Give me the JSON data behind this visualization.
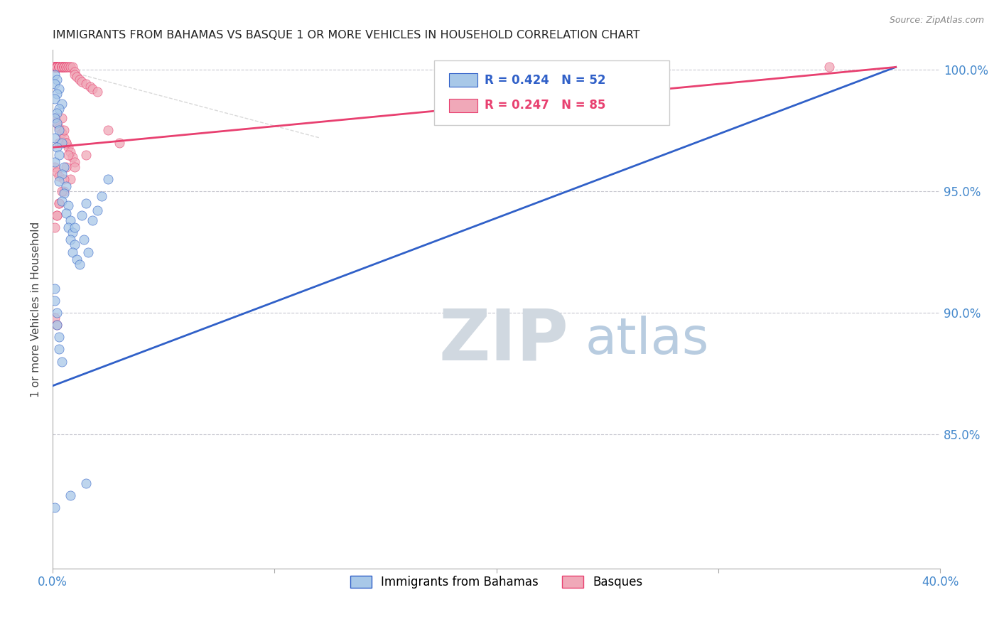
{
  "title": "IMMIGRANTS FROM BAHAMAS VS BASQUE 1 OR MORE VEHICLES IN HOUSEHOLD CORRELATION CHART",
  "source": "Source: ZipAtlas.com",
  "ylabel": "1 or more Vehicles in Household",
  "legend_blue_label": "Immigrants from Bahamas",
  "legend_pink_label": "Basques",
  "legend_blue_r": "R = 0.424",
  "legend_blue_n": "N = 52",
  "legend_pink_r": "R = 0.247",
  "legend_pink_n": "N = 85",
  "blue_color": "#a8c8e8",
  "pink_color": "#f0a8b8",
  "trend_blue_color": "#3060c8",
  "trend_pink_color": "#e84070",
  "title_color": "#222222",
  "axis_label_color": "#4488cc",
  "watermark_zip_color": "#d0d8e0",
  "watermark_atlas_color": "#b8cce0",
  "background_color": "#ffffff",
  "grid_color": "#c8c8d0",
  "xmin": 0.0,
  "xmax": 0.4,
  "ymin": 0.795,
  "ymax": 1.008,
  "yticks": [
    0.85,
    0.9,
    0.95,
    1.0
  ],
  "ytick_labels": [
    "85.0%",
    "90.0%",
    "95.0%",
    "100.0%"
  ],
  "xticks": [
    0.0,
    0.1,
    0.2,
    0.3,
    0.4
  ],
  "xtick_labels": [
    "0.0%",
    "",
    "",
    "",
    "40.0%"
  ],
  "blue_trend_x0": 0.0,
  "blue_trend_x1": 0.38,
  "blue_trend_y0": 0.87,
  "blue_trend_y1": 1.001,
  "pink_trend_x0": 0.0,
  "pink_trend_x1": 0.38,
  "pink_trend_y0": 0.968,
  "pink_trend_y1": 1.001,
  "blue_scatter_x": [
    0.001,
    0.002,
    0.001,
    0.003,
    0.002,
    0.001,
    0.004,
    0.003,
    0.002,
    0.001,
    0.002,
    0.003,
    0.001,
    0.004,
    0.002,
    0.003,
    0.001,
    0.005,
    0.004,
    0.003,
    0.006,
    0.005,
    0.004,
    0.007,
    0.006,
    0.008,
    0.007,
    0.009,
    0.008,
    0.01,
    0.009,
    0.011,
    0.012,
    0.01,
    0.013,
    0.015,
    0.014,
    0.016,
    0.018,
    0.02,
    0.022,
    0.025,
    0.001,
    0.001,
    0.002,
    0.002,
    0.003,
    0.003,
    0.004,
    0.001,
    0.015,
    0.008
  ],
  "blue_scatter_y": [
    0.998,
    0.996,
    0.994,
    0.992,
    0.99,
    0.988,
    0.986,
    0.984,
    0.982,
    0.98,
    0.978,
    0.975,
    0.972,
    0.97,
    0.968,
    0.965,
    0.962,
    0.96,
    0.957,
    0.954,
    0.952,
    0.949,
    0.946,
    0.944,
    0.941,
    0.938,
    0.935,
    0.933,
    0.93,
    0.928,
    0.925,
    0.922,
    0.92,
    0.935,
    0.94,
    0.945,
    0.93,
    0.925,
    0.938,
    0.942,
    0.948,
    0.955,
    0.91,
    0.905,
    0.9,
    0.895,
    0.89,
    0.885,
    0.88,
    0.82,
    0.83,
    0.825
  ],
  "pink_scatter_x": [
    0.001,
    0.001,
    0.001,
    0.001,
    0.001,
    0.001,
    0.001,
    0.001,
    0.001,
    0.001,
    0.002,
    0.002,
    0.002,
    0.002,
    0.002,
    0.002,
    0.002,
    0.002,
    0.003,
    0.003,
    0.003,
    0.003,
    0.003,
    0.003,
    0.004,
    0.004,
    0.004,
    0.004,
    0.004,
    0.005,
    0.005,
    0.005,
    0.005,
    0.006,
    0.006,
    0.006,
    0.007,
    0.007,
    0.008,
    0.008,
    0.009,
    0.01,
    0.01,
    0.011,
    0.012,
    0.013,
    0.015,
    0.017,
    0.018,
    0.02,
    0.001,
    0.002,
    0.003,
    0.004,
    0.005,
    0.006,
    0.007,
    0.008,
    0.009,
    0.01,
    0.001,
    0.002,
    0.003,
    0.025,
    0.03,
    0.015,
    0.01,
    0.008,
    0.005,
    0.003,
    0.002,
    0.001,
    0.003,
    0.004,
    0.005,
    0.006,
    0.007,
    0.006,
    0.005,
    0.004,
    0.003,
    0.002,
    0.35,
    0.001,
    0.002
  ],
  "pink_scatter_y": [
    1.001,
    1.001,
    1.001,
    1.001,
    1.001,
    1.001,
    1.001,
    1.001,
    1.001,
    1.001,
    1.001,
    1.001,
    1.001,
    1.001,
    1.001,
    1.001,
    1.001,
    1.001,
    1.001,
    1.001,
    1.001,
    1.001,
    1.001,
    1.001,
    1.001,
    1.001,
    1.001,
    1.001,
    1.001,
    1.001,
    1.001,
    1.001,
    1.001,
    1.001,
    1.001,
    1.001,
    1.001,
    1.001,
    1.001,
    1.001,
    1.001,
    0.999,
    0.998,
    0.997,
    0.996,
    0.995,
    0.994,
    0.993,
    0.992,
    0.991,
    0.98,
    0.978,
    0.976,
    0.974,
    0.972,
    0.97,
    0.968,
    0.966,
    0.964,
    0.962,
    0.96,
    0.958,
    0.956,
    0.975,
    0.97,
    0.965,
    0.96,
    0.955,
    0.95,
    0.945,
    0.94,
    0.935,
    0.97,
    0.98,
    0.975,
    0.97,
    0.965,
    0.96,
    0.955,
    0.95,
    0.945,
    0.94,
    1.001,
    0.898,
    0.895
  ]
}
